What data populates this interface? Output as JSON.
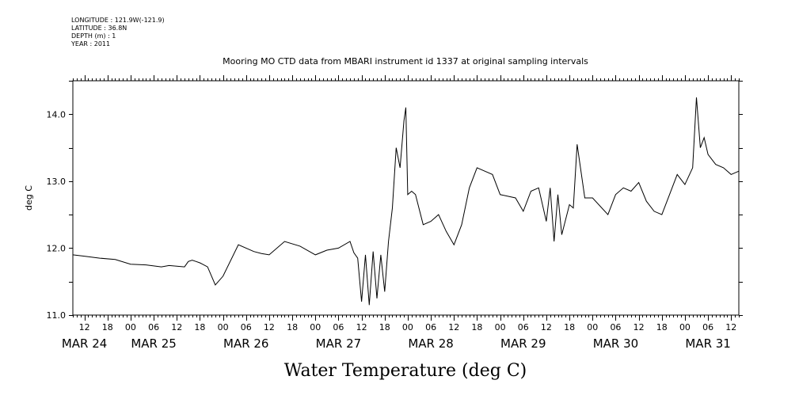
{
  "header": {
    "longitude": "LONGITUDE : 121.9W(-121.9)",
    "latitude": "LATITUDE : 36.8N",
    "depth": "DEPTH (m) : 1",
    "year": "YEAR : 2011"
  },
  "chart_data": {
    "type": "line",
    "title": "Mooring MO CTD data from MBARI instrument id 1337 at original sampling intervals",
    "xlabel": "Water Temperature (deg C)",
    "ylabel": "deg C",
    "ylim": [
      11.0,
      14.5
    ],
    "xlim": [
      "2011-03-24T09:00",
      "2011-03-31T14:00"
    ],
    "yticks": [
      "11.0",
      "12.0",
      "13.0",
      "14.0"
    ],
    "hour_ticks": [
      "12",
      "18",
      "00",
      "06",
      "12",
      "18",
      "00",
      "06",
      "12",
      "18",
      "00",
      "06",
      "12",
      "18",
      "00",
      "06",
      "12",
      "18",
      "00",
      "06",
      "12",
      "18",
      "00",
      "06",
      "12",
      "18",
      "00",
      "06",
      "12"
    ],
    "date_labels": [
      "MAR 24",
      "MAR 25",
      "MAR 26",
      "MAR 27",
      "MAR 28",
      "MAR 29",
      "MAR 30",
      "MAR 31"
    ],
    "grid": false,
    "legend": "none",
    "line_color": "#000000",
    "series": [
      {
        "x": [
          "2011-03-24T09:00",
          "2011-03-24T12:00",
          "2011-03-24T16:00",
          "2011-03-24T20:00",
          "2011-03-25T00:00",
          "2011-03-25T04:00",
          "2011-03-25T08:00",
          "2011-03-25T10:00",
          "2011-03-25T14:00",
          "2011-03-25T15:00",
          "2011-03-25T16:00",
          "2011-03-25T17:00",
          "2011-03-25T18:00",
          "2011-03-25T20:00",
          "2011-03-25T22:00",
          "2011-03-26T00:00",
          "2011-03-26T04:00",
          "2011-03-26T08:00",
          "2011-03-26T10:00",
          "2011-03-26T12:00",
          "2011-03-26T16:00",
          "2011-03-26T20:00",
          "2011-03-27T00:00",
          "2011-03-27T03:00",
          "2011-03-27T06:00",
          "2011-03-27T09:00",
          "2011-03-27T10:00",
          "2011-03-27T11:00",
          "2011-03-27T12:00",
          "2011-03-27T13:00",
          "2011-03-27T14:00",
          "2011-03-27T15:00",
          "2011-03-27T16:00",
          "2011-03-27T17:00",
          "2011-03-27T18:00",
          "2011-03-27T19:00",
          "2011-03-27T20:00",
          "2011-03-27T21:00",
          "2011-03-27T22:00",
          "2011-03-27T23:00",
          "2011-03-27T23:30",
          "2011-03-28T00:00",
          "2011-03-28T01:00",
          "2011-03-28T02:00",
          "2011-03-28T04:00",
          "2011-03-28T06:00",
          "2011-03-28T08:00",
          "2011-03-28T10:00",
          "2011-03-28T12:00",
          "2011-03-28T14:00",
          "2011-03-28T16:00",
          "2011-03-28T18:00",
          "2011-03-28T20:00",
          "2011-03-28T22:00",
          "2011-03-29T00:00",
          "2011-03-29T04:00",
          "2011-03-29T06:00",
          "2011-03-29T08:00",
          "2011-03-29T10:00",
          "2011-03-29T12:00",
          "2011-03-29T13:00",
          "2011-03-29T14:00",
          "2011-03-29T15:00",
          "2011-03-29T16:00",
          "2011-03-29T18:00",
          "2011-03-29T19:00",
          "2011-03-29T20:00",
          "2011-03-29T22:00",
          "2011-03-30T00:00",
          "2011-03-30T04:00",
          "2011-03-30T06:00",
          "2011-03-30T08:00",
          "2011-03-30T10:00",
          "2011-03-30T12:00",
          "2011-03-30T14:00",
          "2011-03-30T16:00",
          "2011-03-30T18:00",
          "2011-03-30T20:00",
          "2011-03-30T22:00",
          "2011-03-31T00:00",
          "2011-03-31T02:00",
          "2011-03-31T03:00",
          "2011-03-31T04:00",
          "2011-03-31T05:00",
          "2011-03-31T06:00",
          "2011-03-31T08:00",
          "2011-03-31T10:00",
          "2011-03-31T12:00",
          "2011-03-31T14:00"
        ],
        "y": [
          11.9,
          11.88,
          11.85,
          11.83,
          11.76,
          11.75,
          11.72,
          11.74,
          11.72,
          11.8,
          11.82,
          11.8,
          11.78,
          11.72,
          11.45,
          11.58,
          12.05,
          11.95,
          11.92,
          11.9,
          12.1,
          12.03,
          11.9,
          11.97,
          12.0,
          12.1,
          11.93,
          11.85,
          11.2,
          11.9,
          11.15,
          11.95,
          11.25,
          11.9,
          11.35,
          12.1,
          12.6,
          13.5,
          13.2,
          13.9,
          14.1,
          12.8,
          12.85,
          12.8,
          12.35,
          12.4,
          12.5,
          12.25,
          12.05,
          12.35,
          12.9,
          13.2,
          13.15,
          13.1,
          12.8,
          12.75,
          12.55,
          12.85,
          12.9,
          12.4,
          12.9,
          12.1,
          12.8,
          12.2,
          12.65,
          12.6,
          13.55,
          12.75,
          12.75,
          12.5,
          12.8,
          12.9,
          12.85,
          12.98,
          12.7,
          12.55,
          12.5,
          12.8,
          13.1,
          12.95,
          13.2,
          14.25,
          13.5,
          13.65,
          13.4,
          13.25,
          13.2,
          13.1,
          13.15
        ]
      }
    ]
  }
}
